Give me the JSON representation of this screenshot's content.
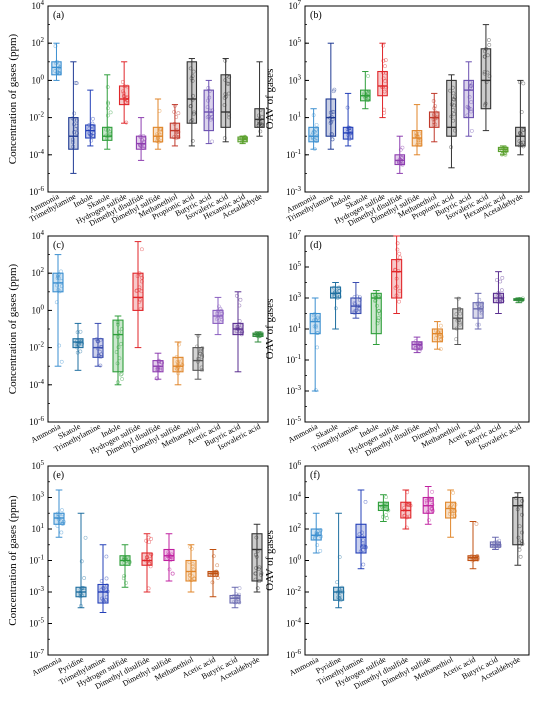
{
  "chart_data": [
    {
      "type": "box",
      "panel_label": "(a)",
      "ylabel": "Concentration of gases (ppm)",
      "yscale": "log",
      "ylim_exp": [
        -6,
        4
      ],
      "ytick_exps": [
        -6,
        -4,
        -2,
        0,
        2,
        4
      ],
      "categories": [
        "Ammonia",
        "Trimethylamine",
        "Indole",
        "Skatole",
        "Hydrogen sulfide",
        "Dimethyl disulfide",
        "Dimethyl sulfide",
        "Methanethiol",
        "Propionic acid",
        "Butyric acid",
        "Isovaleric acid",
        "Hexanoic acid",
        "Acetaldehyde"
      ],
      "colors": [
        "#3b8fd0",
        "#1f3a93",
        "#2440b8",
        "#2e9e3a",
        "#e0262a",
        "#8e3fb0",
        "#e0862a",
        "#c0392b",
        "#333333",
        "#6a4fb0",
        "#333333",
        "#5aa02c",
        "#333333"
      ],
      "boxes": [
        {
          "min": 1.0,
          "q1": 2.0,
          "median": 5.0,
          "q3": 10.0,
          "max": 100.0
        },
        {
          "min": 1e-05,
          "q1": 0.0002,
          "median": 0.001,
          "q3": 0.01,
          "max": 10.0
        },
        {
          "min": 0.0003,
          "q1": 0.0008,
          "median": 0.002,
          "q3": 0.004,
          "max": 0.3
        },
        {
          "min": 0.0002,
          "q1": 0.0006,
          "median": 0.001,
          "q3": 0.003,
          "max": 2.0
        },
        {
          "min": 0.005,
          "q1": 0.05,
          "median": 0.1,
          "q3": 0.5,
          "max": 10.0
        },
        {
          "min": 5e-05,
          "q1": 0.0002,
          "median": 0.0004,
          "q3": 0.001,
          "max": 0.01
        },
        {
          "min": 0.0002,
          "q1": 0.0005,
          "median": 0.001,
          "q3": 0.003,
          "max": 0.1
        },
        {
          "min": 0.0003,
          "q1": 0.0008,
          "median": 0.002,
          "q3": 0.005,
          "max": 0.05
        },
        {
          "min": 0.0003,
          "q1": 0.005,
          "median": 0.1,
          "q3": 10.0,
          "max": 15.0
        },
        {
          "min": 0.0004,
          "q1": 0.002,
          "median": 0.02,
          "q3": 0.3,
          "max": 1.0
        },
        {
          "min": 0.0005,
          "q1": 0.003,
          "median": 0.02,
          "q3": 2.0,
          "max": 15.0
        },
        {
          "min": 0.0004,
          "q1": 0.0005,
          "median": 0.0007,
          "q3": 0.0009,
          "max": 0.001
        },
        {
          "min": 0.001,
          "q1": 0.003,
          "median": 0.008,
          "q3": 0.03,
          "max": 10.0
        }
      ]
    },
    {
      "type": "box",
      "panel_label": "(b)",
      "ylabel": "OAV of gases",
      "yscale": "log",
      "ylim_exp": [
        -3,
        7
      ],
      "ytick_exps": [
        -3,
        -1,
        1,
        3,
        5,
        7
      ],
      "categories": [
        "Ammonia",
        "Trimethylamine",
        "Indole",
        "Skatole",
        "Hydrogen sulfide",
        "Dimethyl disulfide",
        "Dimethyl sulfide",
        "Methanethiol",
        "Propionic acid",
        "Butyric acid",
        "Isovaleric acid",
        "Hexanoic acid",
        "Acetaldehyde"
      ],
      "colors": [
        "#3b8fd0",
        "#1f3a93",
        "#2440b8",
        "#2e9e3a",
        "#e0262a",
        "#8e3fb0",
        "#e0862a",
        "#c0392b",
        "#333333",
        "#6a4fb0",
        "#333333",
        "#5aa02c",
        "#333333"
      ],
      "boxes": [
        {
          "min": 0.2,
          "q1": 0.5,
          "median": 1.0,
          "q3": 3.0,
          "max": 30.0
        },
        {
          "min": 0.2,
          "q1": 1.0,
          "median": 10.0,
          "q3": 100.0,
          "max": 100000.0
        },
        {
          "min": 0.3,
          "q1": 0.7,
          "median": 1.5,
          "q3": 3.0,
          "max": 200.0
        },
        {
          "min": 30.0,
          "q1": 80.0,
          "median": 150.0,
          "q3": 300.0,
          "max": 3000.0
        },
        {
          "min": 10.0,
          "q1": 150.0,
          "median": 500.0,
          "q3": 3000.0,
          "max": 100000.0
        },
        {
          "min": 0.01,
          "q1": 0.03,
          "median": 0.05,
          "q3": 0.1,
          "max": 1.0
        },
        {
          "min": 0.1,
          "q1": 0.3,
          "median": 0.8,
          "q3": 2.0,
          "max": 50.0
        },
        {
          "min": 0.5,
          "q1": 3.0,
          "median": 10.0,
          "q3": 20.0,
          "max": 200.0
        },
        {
          "min": 0.02,
          "q1": 1.0,
          "median": 3.0,
          "q3": 1000.0,
          "max": 2000.0
        },
        {
          "min": 1.0,
          "q1": 10.0,
          "median": 300.0,
          "q3": 1000.0,
          "max": 10000.0
        },
        {
          "min": 2.0,
          "q1": 30.0,
          "median": 1000.0,
          "q3": 50000.0,
          "max": 1000000.0
        },
        {
          "min": 0.1,
          "q1": 0.15,
          "median": 0.2,
          "q3": 0.25,
          "max": 0.3
        },
        {
          "min": 0.1,
          "q1": 0.3,
          "median": 1.0,
          "q3": 3.0,
          "max": 1000.0
        }
      ]
    },
    {
      "type": "box",
      "panel_label": "(c)",
      "ylabel": "Concentration of gases (ppm)",
      "yscale": "log",
      "ylim_exp": [
        -6,
        4
      ],
      "ytick_exps": [
        -6,
        -4,
        -2,
        0,
        2,
        4
      ],
      "categories": [
        "Ammonia",
        "Skatole",
        "Trimethylamine",
        "Indole",
        "Hydrogen sulfide",
        "Dimethyl disulfide",
        "Dimethyl sulfide",
        "Methanethiol",
        "Acetic acid",
        "Butyric acid",
        "Isovaleric acid"
      ],
      "colors": [
        "#3b8fd0",
        "#1f6fa0",
        "#3a4db0",
        "#2e9e3a",
        "#e0262a",
        "#8e3fb0",
        "#e0862a",
        "#555555",
        "#8a5fc0",
        "#5a2f90",
        "#2e8a3a"
      ],
      "boxes": [
        {
          "min": 0.001,
          "q1": 10.0,
          "median": 30.0,
          "q3": 100.0,
          "max": 1000.0
        },
        {
          "min": 0.0006,
          "q1": 0.01,
          "median": 0.02,
          "q3": 0.03,
          "max": 0.2
        },
        {
          "min": 0.001,
          "q1": 0.003,
          "median": 0.01,
          "q3": 0.03,
          "max": 0.2
        },
        {
          "min": 0.0001,
          "q1": 0.0005,
          "median": 0.05,
          "q3": 0.3,
          "max": 0.5
        },
        {
          "min": 0.01,
          "q1": 1.0,
          "median": 5.0,
          "q3": 100.0,
          "max": 5000.0
        },
        {
          "min": 0.0002,
          "q1": 0.0005,
          "median": 0.001,
          "q3": 0.002,
          "max": 0.005
        },
        {
          "min": 0.0001,
          "q1": 0.0005,
          "median": 0.001,
          "q3": 0.003,
          "max": 0.02
        },
        {
          "min": 0.0002,
          "q1": 0.0006,
          "median": 0.002,
          "q3": 0.01,
          "max": 0.05
        },
        {
          "min": 0.05,
          "q1": 0.2,
          "median": 0.5,
          "q3": 1.0,
          "max": 5.0
        },
        {
          "min": 0.0005,
          "q1": 0.05,
          "median": 0.1,
          "q3": 0.2,
          "max": 10.0
        },
        {
          "min": 0.02,
          "q1": 0.04,
          "median": 0.05,
          "q3": 0.06,
          "max": 0.07
        }
      ]
    },
    {
      "type": "box",
      "panel_label": "(d)",
      "ylabel": "OAV of gases",
      "yscale": "log",
      "ylim_exp": [
        -5,
        7
      ],
      "ytick_exps": [
        -5,
        -3,
        -1,
        1,
        3,
        5,
        7
      ],
      "categories": [
        "Ammonia",
        "Skatole",
        "Trimethylamine",
        "Indole",
        "Hydrogen sulfide",
        "Dimethyl disulfide",
        "Dimethyl",
        "Methanethiol",
        "Acetic acid",
        "Butyric acid",
        "Isovaleric acid"
      ],
      "colors": [
        "#3b8fd0",
        "#1f6fa0",
        "#3a4db0",
        "#2e9e3a",
        "#e0262a",
        "#8e3fb0",
        "#e0862a",
        "#555555",
        "#6a6ab0",
        "#5a2f90",
        "#2e8a3a"
      ],
      "boxes": [
        {
          "min": 0.001,
          "q1": 5.0,
          "median": 30.0,
          "q3": 100.0,
          "max": 1000.0
        },
        {
          "min": 10.0,
          "q1": 1000.0,
          "median": 2000.0,
          "q3": 5000.0,
          "max": 10000.0
        },
        {
          "min": 50.0,
          "q1": 100.0,
          "median": 300.0,
          "q3": 1000.0,
          "max": 10000.0
        },
        {
          "min": 1.0,
          "q1": 5.0,
          "median": 1000.0,
          "q3": 2000.0,
          "max": 3000.0
        },
        {
          "min": 100.0,
          "q1": 1000.0,
          "median": 50000.0,
          "q3": 300000.0,
          "max": 10000000.0
        },
        {
          "min": 0.3,
          "q1": 0.5,
          "median": 1.0,
          "q3": 1.5,
          "max": 3.0
        },
        {
          "min": 0.5,
          "q1": 1.5,
          "median": 5.0,
          "q3": 10.0,
          "max": 30.0
        },
        {
          "min": 1.0,
          "q1": 10.0,
          "median": 50.0,
          "q3": 200.0,
          "max": 1000.0
        },
        {
          "min": 10.0,
          "q1": 50.0,
          "median": 200.0,
          "q3": 500.0,
          "max": 2000.0
        },
        {
          "min": 100.0,
          "q1": 500.0,
          "median": 1000.0,
          "q3": 2000.0,
          "max": 50000.0
        },
        {
          "min": 500.0,
          "q1": 700.0,
          "median": 800.0,
          "q3": 900.0,
          "max": 1000.0
        }
      ]
    },
    {
      "type": "box",
      "panel_label": "(e)",
      "ylabel": "Concentration of gases (ppm)",
      "yscale": "log",
      "ylim_exp": [
        -7,
        5
      ],
      "ytick_exps": [
        -7,
        -5,
        -3,
        -1,
        1,
        3,
        5
      ],
      "categories": [
        "Ammonia",
        "Pyridine",
        "Trimethylamine",
        "Hydrogen sulfide",
        "Dimethyl disulfide",
        "Dimethyl sulfide",
        "Methanethiol",
        "Acetic acid",
        "Butyric acid",
        "Acetaldehyde"
      ],
      "colors": [
        "#3b8fd0",
        "#1f6fa0",
        "#2440b8",
        "#2e9e3a",
        "#e0262a",
        "#c020a0",
        "#e0862a",
        "#c05010",
        "#6a6ab0",
        "#333333"
      ],
      "boxes": [
        {
          "min": 3.0,
          "q1": 20.0,
          "median": 50.0,
          "q3": 100.0,
          "max": 3000.0
        },
        {
          "min": 0.0001,
          "q1": 0.0005,
          "median": 0.001,
          "q3": 0.002,
          "max": 100.0
        },
        {
          "min": 5e-05,
          "q1": 0.0002,
          "median": 0.001,
          "q3": 0.003,
          "max": 1.0
        },
        {
          "min": 0.002,
          "q1": 0.05,
          "median": 0.1,
          "q3": 0.2,
          "max": 1.0
        },
        {
          "min": 0.001,
          "q1": 0.05,
          "median": 0.1,
          "q3": 0.3,
          "max": 5.0
        },
        {
          "min": 0.005,
          "q1": 0.1,
          "median": 0.2,
          "q3": 0.5,
          "max": 5.0
        },
        {
          "min": 0.001,
          "q1": 0.005,
          "median": 0.02,
          "q3": 0.1,
          "max": 1.0
        },
        {
          "min": 0.0005,
          "q1": 0.01,
          "median": 0.015,
          "q3": 0.02,
          "max": 0.5
        },
        {
          "min": 0.0001,
          "q1": 0.0002,
          "median": 0.0004,
          "q3": 0.0006,
          "max": 0.002
        },
        {
          "min": 0.001,
          "q1": 0.005,
          "median": 0.5,
          "q3": 5.0,
          "max": 20.0
        }
      ]
    },
    {
      "type": "box",
      "panel_label": "(f)",
      "ylabel": "OAV of gases",
      "yscale": "log",
      "ylim_exp": [
        -6,
        6
      ],
      "ytick_exps": [
        -6,
        -4,
        -2,
        0,
        2,
        4,
        6
      ],
      "categories": [
        "Ammonia",
        "Pyridine",
        "Trimethylamine",
        "Hydrogen sulfide",
        "Dimethyl disulfide",
        "Dimethyl sulfide",
        "Methanethiol",
        "Acetic acid",
        "Butyric acid",
        "Acetaldehyde"
      ],
      "colors": [
        "#3b8fd0",
        "#1f6fa0",
        "#2440b8",
        "#2e9e3a",
        "#e0262a",
        "#c020a0",
        "#e0862a",
        "#c05010",
        "#6a6ab0",
        "#333333"
      ],
      "boxes": [
        {
          "min": 3.0,
          "q1": 20.0,
          "median": 40.0,
          "q3": 100.0,
          "max": 1000.0
        },
        {
          "min": 0.001,
          "q1": 0.003,
          "median": 0.01,
          "q3": 0.02,
          "max": 1000.0
        },
        {
          "min": 0.3,
          "q1": 3.0,
          "median": 30.0,
          "q3": 200.0,
          "max": 30000.0
        },
        {
          "min": 300.0,
          "q1": 1500.0,
          "median": 3000.0,
          "q3": 5000.0,
          "max": 15000.0
        },
        {
          "min": 100.0,
          "q1": 500.0,
          "median": 1500.0,
          "q3": 5000.0,
          "max": 30000.0
        },
        {
          "min": 200.0,
          "q1": 1000.0,
          "median": 3000.0,
          "q3": 10000.0,
          "max": 50000.0
        },
        {
          "min": 30.0,
          "q1": 500.0,
          "median": 2000.0,
          "q3": 5000.0,
          "max": 30000.0
        },
        {
          "min": 0.3,
          "q1": 1.0,
          "median": 1.5,
          "q3": 2.0,
          "max": 300.0
        },
        {
          "min": 5.0,
          "q1": 7.0,
          "median": 10.0,
          "q3": 15.0,
          "max": 30.0
        },
        {
          "min": 0.5,
          "q1": 10.0,
          "median": 3000.0,
          "q3": 10000.0,
          "max": 20000.0
        }
      ]
    }
  ]
}
